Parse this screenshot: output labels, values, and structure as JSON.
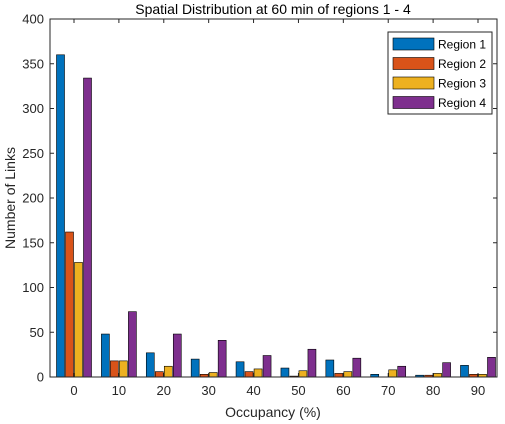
{
  "chart_data": {
    "type": "bar",
    "title": "Spatial Distribution at 60 min of regions 1 - 4",
    "xlabel": "Occupancy (%)",
    "ylabel": "Number of Links",
    "categories": [
      "0",
      "10",
      "20",
      "30",
      "40",
      "50",
      "60",
      "70",
      "80",
      "90"
    ],
    "ylim": [
      0,
      400
    ],
    "yticks": [
      "0",
      "50",
      "100",
      "150",
      "200",
      "250",
      "300",
      "350",
      "400"
    ],
    "legend_position": "top-right",
    "grid": false,
    "series": [
      {
        "name": "Region 1",
        "color": "#0072BD",
        "values": [
          360,
          48,
          27,
          20,
          17,
          10,
          19,
          3,
          2,
          13
        ]
      },
      {
        "name": "Region 2",
        "color": "#D95319",
        "values": [
          162,
          18,
          6,
          3,
          6,
          1,
          4,
          0,
          2,
          3
        ]
      },
      {
        "name": "Region 3",
        "color": "#EDB120",
        "values": [
          128,
          18,
          12,
          5,
          9,
          7,
          6,
          8,
          4,
          3
        ]
      },
      {
        "name": "Region 4",
        "color": "#7E2F8E",
        "values": [
          334,
          73,
          48,
          41,
          24,
          31,
          21,
          12,
          16,
          22
        ]
      }
    ]
  }
}
